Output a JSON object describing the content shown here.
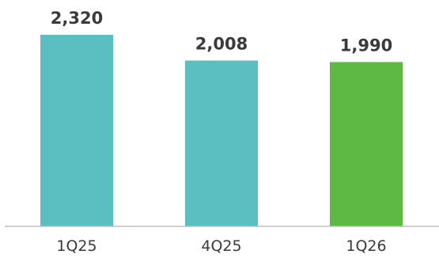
{
  "chart_data": {
    "type": "bar",
    "title": "",
    "xlabel": "",
    "ylabel": "",
    "categories": [
      "1Q25",
      "4Q25",
      "1Q26"
    ],
    "values": [
      2320,
      2008,
      1990
    ],
    "value_labels": [
      "2,320",
      "2,008",
      "1,990"
    ],
    "colors": [
      "#5bbfc1",
      "#5bbfc1",
      "#5db844"
    ],
    "ylim": [
      0,
      2320
    ],
    "grid": false,
    "legend": "none"
  },
  "colors": {
    "text": "#3a3a3a",
    "axis": "#bdbdbd",
    "background": "#ffffff"
  }
}
